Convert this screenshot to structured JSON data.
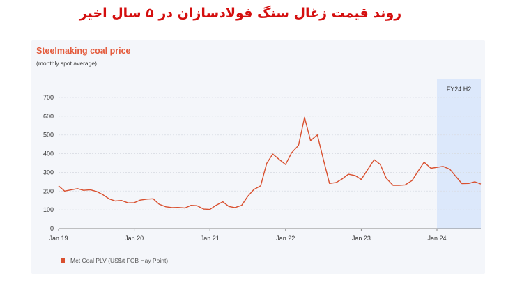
{
  "headline": "روند قیمت زغال سنگ فولادسازان در ۵ سال اخیر",
  "chart_data": {
    "type": "line",
    "title": "Steelmaking coal price",
    "subtitle": "(monthly spot average)",
    "ylim": [
      0,
      700
    ],
    "yticks": [
      0,
      100,
      200,
      300,
      400,
      500,
      600,
      700
    ],
    "xlim": [
      2019.0,
      2024.58
    ],
    "xticks": [
      {
        "label": "Jan 19",
        "x": 2019.0
      },
      {
        "label": "Jan 20",
        "x": 2020.0
      },
      {
        "label": "Jan 21",
        "x": 2021.0
      },
      {
        "label": "Jan 22",
        "x": 2022.0
      },
      {
        "label": "Jan 23",
        "x": 2023.0
      },
      {
        "label": "Jan 24",
        "x": 2024.0
      }
    ],
    "highlight": {
      "label": "FY24 H2",
      "from": 2024.0,
      "to": 2024.55,
      "color": "#dce8fb"
    },
    "series": [
      {
        "name": "Met Coal PLV (US$/t FOB Hay Point)",
        "color": "#d9502f",
        "points": [
          [
            2019.0,
            228
          ],
          [
            2019.08,
            200
          ],
          [
            2019.17,
            207
          ],
          [
            2019.25,
            213
          ],
          [
            2019.33,
            204
          ],
          [
            2019.42,
            207
          ],
          [
            2019.5,
            198
          ],
          [
            2019.58,
            182
          ],
          [
            2019.67,
            158
          ],
          [
            2019.75,
            147
          ],
          [
            2019.83,
            150
          ],
          [
            2019.92,
            137
          ],
          [
            2020.0,
            138
          ],
          [
            2020.08,
            152
          ],
          [
            2020.17,
            157
          ],
          [
            2020.25,
            159
          ],
          [
            2020.33,
            130
          ],
          [
            2020.42,
            116
          ],
          [
            2020.5,
            112
          ],
          [
            2020.58,
            113
          ],
          [
            2020.67,
            110
          ],
          [
            2020.75,
            124
          ],
          [
            2020.83,
            122
          ],
          [
            2020.92,
            104
          ],
          [
            2021.0,
            102
          ],
          [
            2021.08,
            124
          ],
          [
            2021.17,
            143
          ],
          [
            2021.25,
            118
          ],
          [
            2021.33,
            112
          ],
          [
            2021.42,
            124
          ],
          [
            2021.5,
            172
          ],
          [
            2021.58,
            208
          ],
          [
            2021.67,
            228
          ],
          [
            2021.75,
            348
          ],
          [
            2021.83,
            398
          ],
          [
            2021.92,
            368
          ],
          [
            2022.0,
            342
          ],
          [
            2022.08,
            405
          ],
          [
            2022.17,
            444
          ],
          [
            2022.25,
            594
          ],
          [
            2022.33,
            470
          ],
          [
            2022.42,
            500
          ],
          [
            2022.5,
            368
          ],
          [
            2022.58,
            241
          ],
          [
            2022.67,
            246
          ],
          [
            2022.75,
            266
          ],
          [
            2022.83,
            290
          ],
          [
            2022.92,
            283
          ],
          [
            2023.0,
            262
          ],
          [
            2023.08,
            312
          ],
          [
            2023.17,
            368
          ],
          [
            2023.25,
            343
          ],
          [
            2023.33,
            269
          ],
          [
            2023.42,
            231
          ],
          [
            2023.5,
            231
          ],
          [
            2023.58,
            233
          ],
          [
            2023.67,
            256
          ],
          [
            2023.75,
            306
          ],
          [
            2023.83,
            355
          ],
          [
            2023.92,
            322
          ],
          [
            2024.0,
            327
          ],
          [
            2024.08,
            332
          ],
          [
            2024.17,
            317
          ],
          [
            2024.25,
            278
          ],
          [
            2024.33,
            240
          ],
          [
            2024.42,
            241
          ],
          [
            2024.5,
            250
          ],
          [
            2024.58,
            238
          ]
        ]
      }
    ]
  }
}
